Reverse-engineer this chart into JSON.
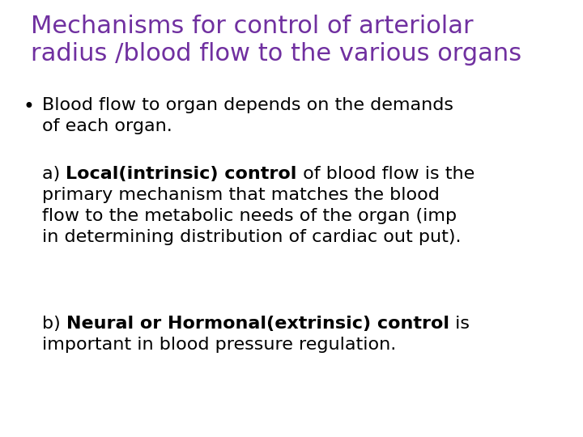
{
  "title_line1": "Mechanisms for control of arteriolar",
  "title_line2": "radius /blood flow to the various organs",
  "title_color": "#7030A0",
  "title_fontsize": 22,
  "body_fontsize": 16,
  "body_color": "#000000",
  "background_color": "#FFFFFF",
  "bullet1_line1": "Blood flow to organ depends on the demands",
  "bullet1_line2": "of each organ.",
  "para_a_prefix": "a) ",
  "para_a_bold": "Local(intrinsic) control",
  "para_a_rest_line1": " of blood flow is the",
  "para_a_line2": "primary mechanism that matches the blood",
  "para_a_line3": "flow to the metabolic needs of the organ (imp",
  "para_a_line4": "in determining distribution of cardiac out put).",
  "para_b_prefix": "b) ",
  "para_b_bold": "Neural or Hormonal(extrinsic) control",
  "para_b_rest_line1": " is",
  "para_b_line2": "important in blood pressure regulation."
}
